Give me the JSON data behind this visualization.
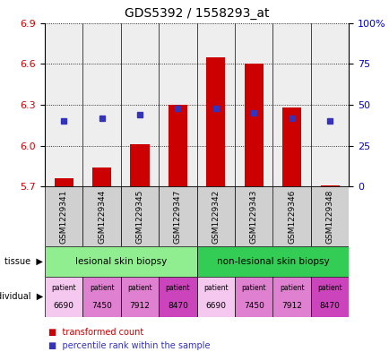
{
  "title": "GDS5392 / 1558293_at",
  "samples": [
    "GSM1229341",
    "GSM1229344",
    "GSM1229345",
    "GSM1229347",
    "GSM1229342",
    "GSM1229343",
    "GSM1229346",
    "GSM1229348"
  ],
  "red_values": [
    5.76,
    5.84,
    6.01,
    6.3,
    6.65,
    6.6,
    6.28,
    5.71
  ],
  "blue_percentiles": [
    40,
    42,
    44,
    48,
    48,
    45,
    42,
    40
  ],
  "ymin": 5.7,
  "ymax": 6.9,
  "yticks_left": [
    5.7,
    6.0,
    6.3,
    6.6,
    6.9
  ],
  "yticks_right": [
    0,
    25,
    50,
    75,
    100
  ],
  "tissue_groups": [
    {
      "label": "lesional skin biopsy",
      "start": 0,
      "end": 4,
      "color": "#90ee90"
    },
    {
      "label": "non-lesional skin biopsy",
      "start": 4,
      "end": 8,
      "color": "#33cc55"
    }
  ],
  "patient_nums": [
    "6690",
    "7450",
    "7912",
    "8470",
    "6690",
    "7450",
    "7912",
    "8470"
  ],
  "patient_colors": {
    "6690": "#f5c8f0",
    "7450": "#e080d0",
    "7912": "#e080d0",
    "8470": "#cc44bb"
  },
  "red_color": "#cc0000",
  "blue_color": "#3333bb",
  "bar_baseline": 5.7,
  "tick_label_color_left": "#cc0000",
  "tick_label_color_right": "#0000cc",
  "sample_bg_color": "#d0d0d0",
  "plot_bg_color": "#ffffff"
}
